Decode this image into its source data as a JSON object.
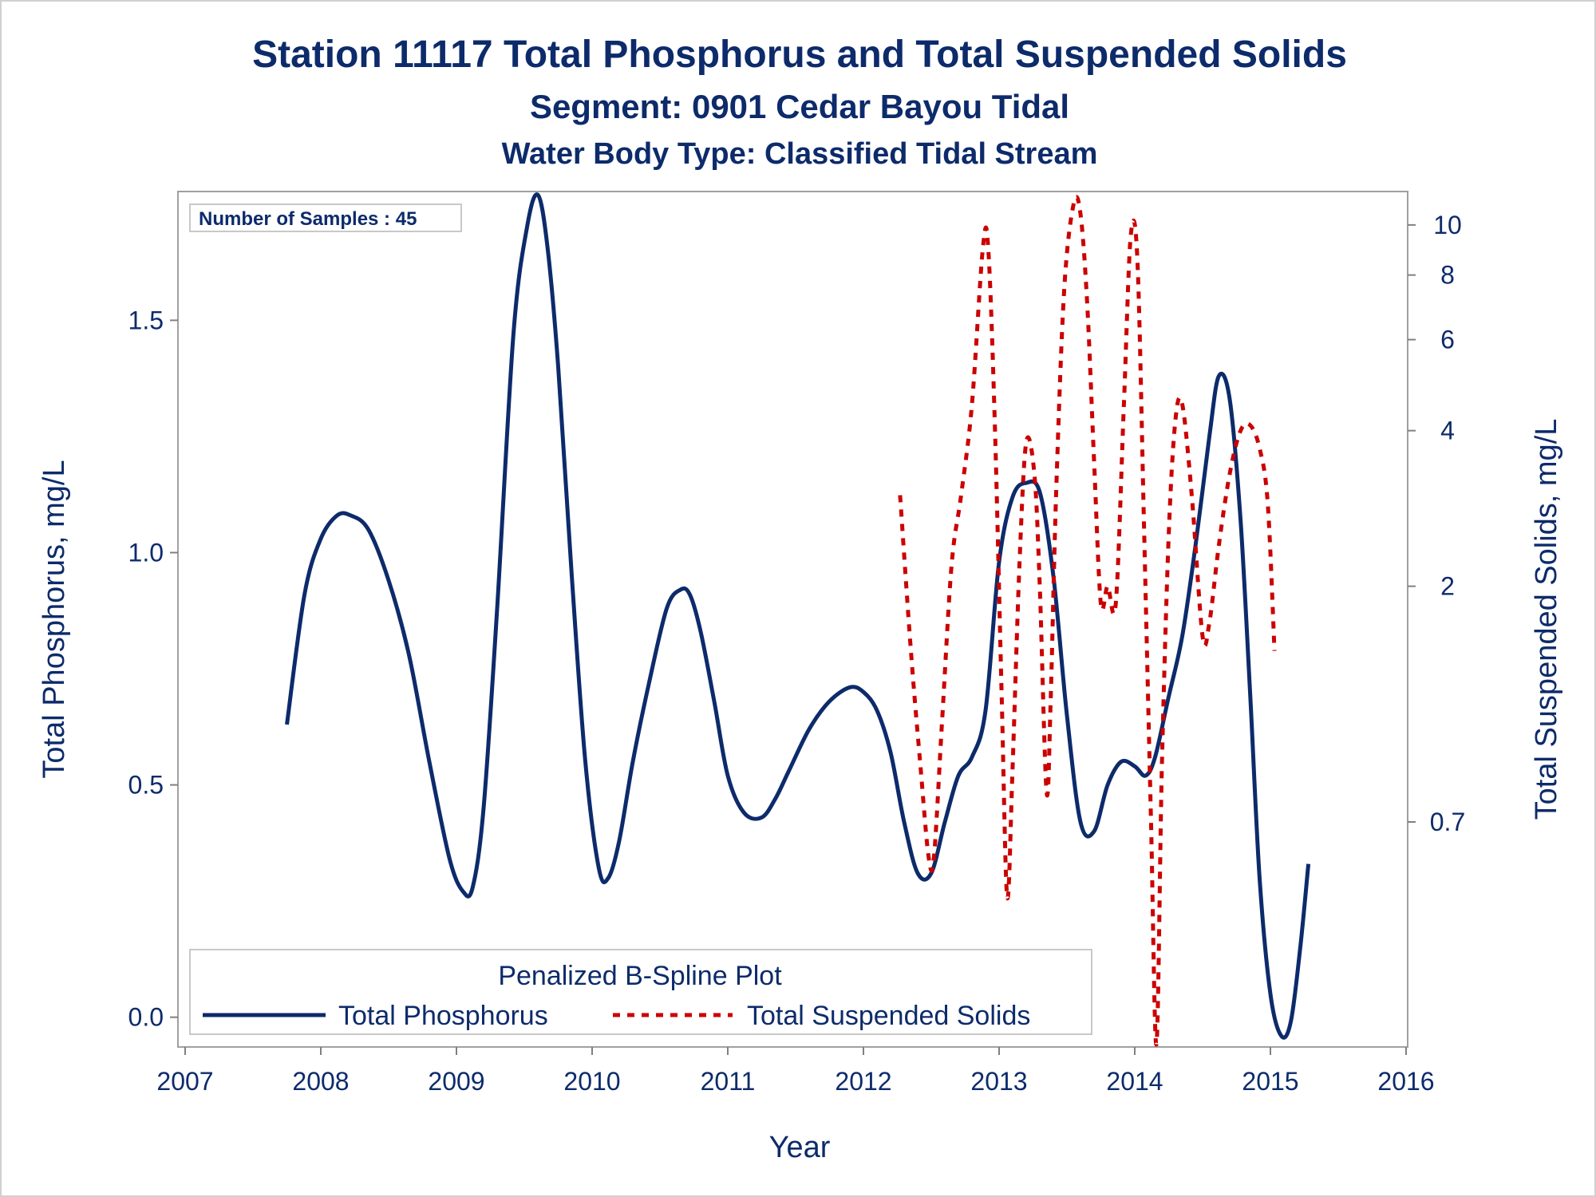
{
  "chart_data": {
    "type": "line",
    "title": "Station 11117  Total Phosphorus and Total Suspended Solids",
    "subtitle": "Segment: 0901  Cedar Bayou Tidal",
    "subtitle2": "Water Body Type: Classified Tidal Stream",
    "xlabel": "Year",
    "ylabel": "Total Phosphorus, mg/L",
    "y2label": "Total Suspended Solids, mg/L",
    "xlim": [
      2007,
      2016
    ],
    "ylim": [
      -0.04,
      1.76
    ],
    "y2lim": [
      0.27,
      11.2
    ],
    "y2scale": "log",
    "grid": false,
    "xticks": [
      "2007",
      "2008",
      "2009",
      "2010",
      "2011",
      "2012",
      "2013",
      "2014",
      "2015",
      "2016"
    ],
    "yticks": [
      "0.0",
      "0.5",
      "1.0",
      "1.5"
    ],
    "y2ticks": [
      "0.7",
      "2",
      "4",
      "6",
      "8",
      "10"
    ],
    "inset_text": "Number of Samples : 45",
    "legend": {
      "title": "Penalized B-Spline Plot",
      "position": "bottom-left",
      "entries": [
        {
          "label": "Total Phosphorus"
        },
        {
          "label": "Total Suspended Solids"
        }
      ]
    },
    "series": [
      {
        "name": "Total Phosphorus",
        "axis": "left",
        "color": "#0d2b6b",
        "style": "solid",
        "x": [
          2007.75,
          2007.88,
          2008.0,
          2008.12,
          2008.22,
          2008.35,
          2008.5,
          2008.65,
          2008.8,
          2008.95,
          2009.05,
          2009.12,
          2009.2,
          2009.3,
          2009.42,
          2009.52,
          2009.6,
          2009.67,
          2009.75,
          2009.85,
          2009.95,
          2010.05,
          2010.12,
          2010.2,
          2010.3,
          2010.42,
          2010.55,
          2010.65,
          2010.72,
          2010.8,
          2010.9,
          2011.0,
          2011.12,
          2011.25,
          2011.35,
          2011.45,
          2011.6,
          2011.75,
          2011.9,
          2012.0,
          2012.1,
          2012.2,
          2012.3,
          2012.4,
          2012.5,
          2012.6,
          2012.7,
          2012.8,
          2012.9,
          2013.0,
          2013.1,
          2013.2,
          2013.3,
          2013.4,
          2013.5,
          2013.6,
          2013.7,
          2013.8,
          2013.9,
          2014.0,
          2014.08,
          2014.15,
          2014.25,
          2014.35,
          2014.45,
          2014.55,
          2014.62,
          2014.7,
          2014.78,
          2014.85,
          2014.92,
          2015.0,
          2015.08,
          2015.15,
          2015.22,
          2015.28
        ],
        "values": [
          0.63,
          0.91,
          1.03,
          1.08,
          1.08,
          1.05,
          0.94,
          0.78,
          0.55,
          0.34,
          0.27,
          0.28,
          0.45,
          0.88,
          1.47,
          1.7,
          1.77,
          1.66,
          1.4,
          0.95,
          0.55,
          0.32,
          0.3,
          0.38,
          0.55,
          0.72,
          0.88,
          0.92,
          0.91,
          0.83,
          0.68,
          0.52,
          0.44,
          0.43,
          0.47,
          0.53,
          0.62,
          0.68,
          0.71,
          0.7,
          0.66,
          0.57,
          0.42,
          0.31,
          0.31,
          0.42,
          0.52,
          0.56,
          0.66,
          0.98,
          1.12,
          1.15,
          1.13,
          0.95,
          0.65,
          0.42,
          0.4,
          0.5,
          0.55,
          0.54,
          0.52,
          0.56,
          0.69,
          0.82,
          1.02,
          1.25,
          1.38,
          1.33,
          1.07,
          0.7,
          0.3,
          0.05,
          -0.04,
          -0.01,
          0.15,
          0.33
        ]
      },
      {
        "name": "Total Suspended Solids",
        "axis": "right",
        "color": "#cc0000",
        "style": "dashed",
        "x": [
          2012.27,
          2012.35,
          2012.42,
          2012.48,
          2012.52,
          2012.58,
          2012.65,
          2012.72,
          2012.8,
          2012.88,
          2012.92,
          2012.97,
          2013.02,
          2013.06,
          2013.1,
          2013.15,
          2013.2,
          2013.26,
          2013.3,
          2013.35,
          2013.38,
          2013.42,
          2013.48,
          2013.55,
          2013.6,
          2013.65,
          2013.7,
          2013.75,
          2013.8,
          2013.86,
          2013.92,
          2013.97,
          2014.02,
          2014.07,
          2014.12,
          2014.16,
          2014.2,
          2014.25,
          2014.3,
          2014.35,
          2014.42,
          2014.5,
          2014.55,
          2014.62,
          2014.7,
          2014.78,
          2014.85,
          2014.92,
          2014.98,
          2015.03
        ],
        "values": [
          3.0,
          1.5,
          0.9,
          0.6,
          0.6,
          1.1,
          2.2,
          3.0,
          4.5,
          9.0,
          9.0,
          4.0,
          1.2,
          0.5,
          0.9,
          2.2,
          3.8,
          3.3,
          2.0,
          0.8,
          1.2,
          3.0,
          7.5,
          11.0,
          10.5,
          7.0,
          3.5,
          1.85,
          2.0,
          1.85,
          4.5,
          9.5,
          8.5,
          2.5,
          0.7,
          0.26,
          0.9,
          2.5,
          4.2,
          4.5,
          3.0,
          1.6,
          1.7,
          2.4,
          3.3,
          4.0,
          4.1,
          3.7,
          2.9,
          1.5
        ]
      }
    ]
  }
}
